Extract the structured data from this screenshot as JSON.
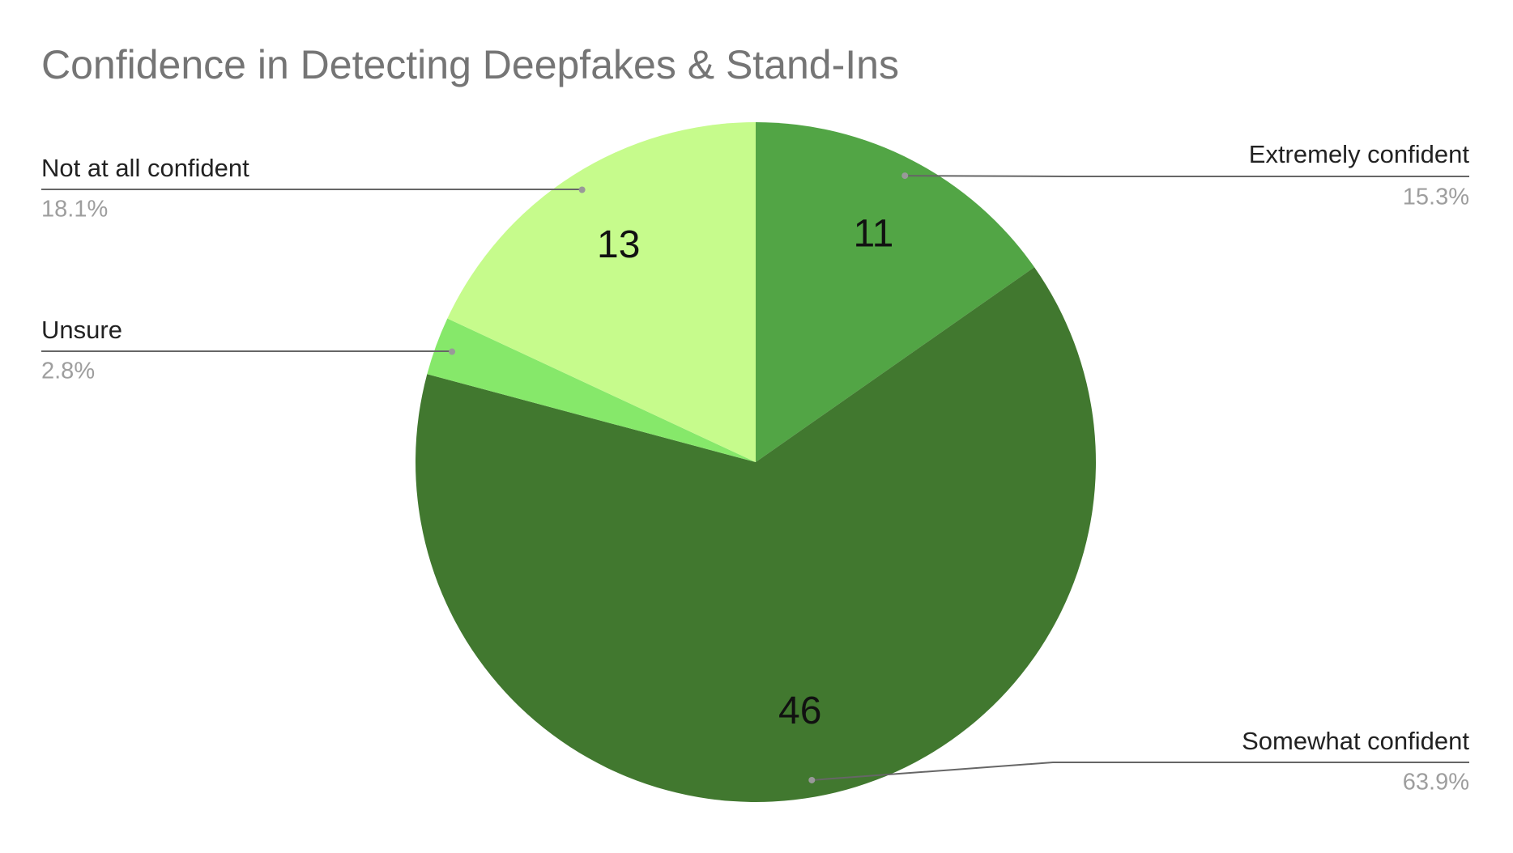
{
  "chart_data": {
    "type": "pie",
    "title": "Confidence in Detecting Deepfakes & Stand-Ins",
    "categories": [
      "Extremely confident",
      "Somewhat confident",
      "Unsure",
      "Not at all confident"
    ],
    "values": [
      11,
      46,
      2,
      13
    ],
    "percent_labels": [
      "15.3%",
      "63.9%",
      "2.8%",
      "18.1%"
    ],
    "colors": [
      "#52a545",
      "#41782f",
      "#86e86a",
      "#c6fb8c"
    ]
  }
}
